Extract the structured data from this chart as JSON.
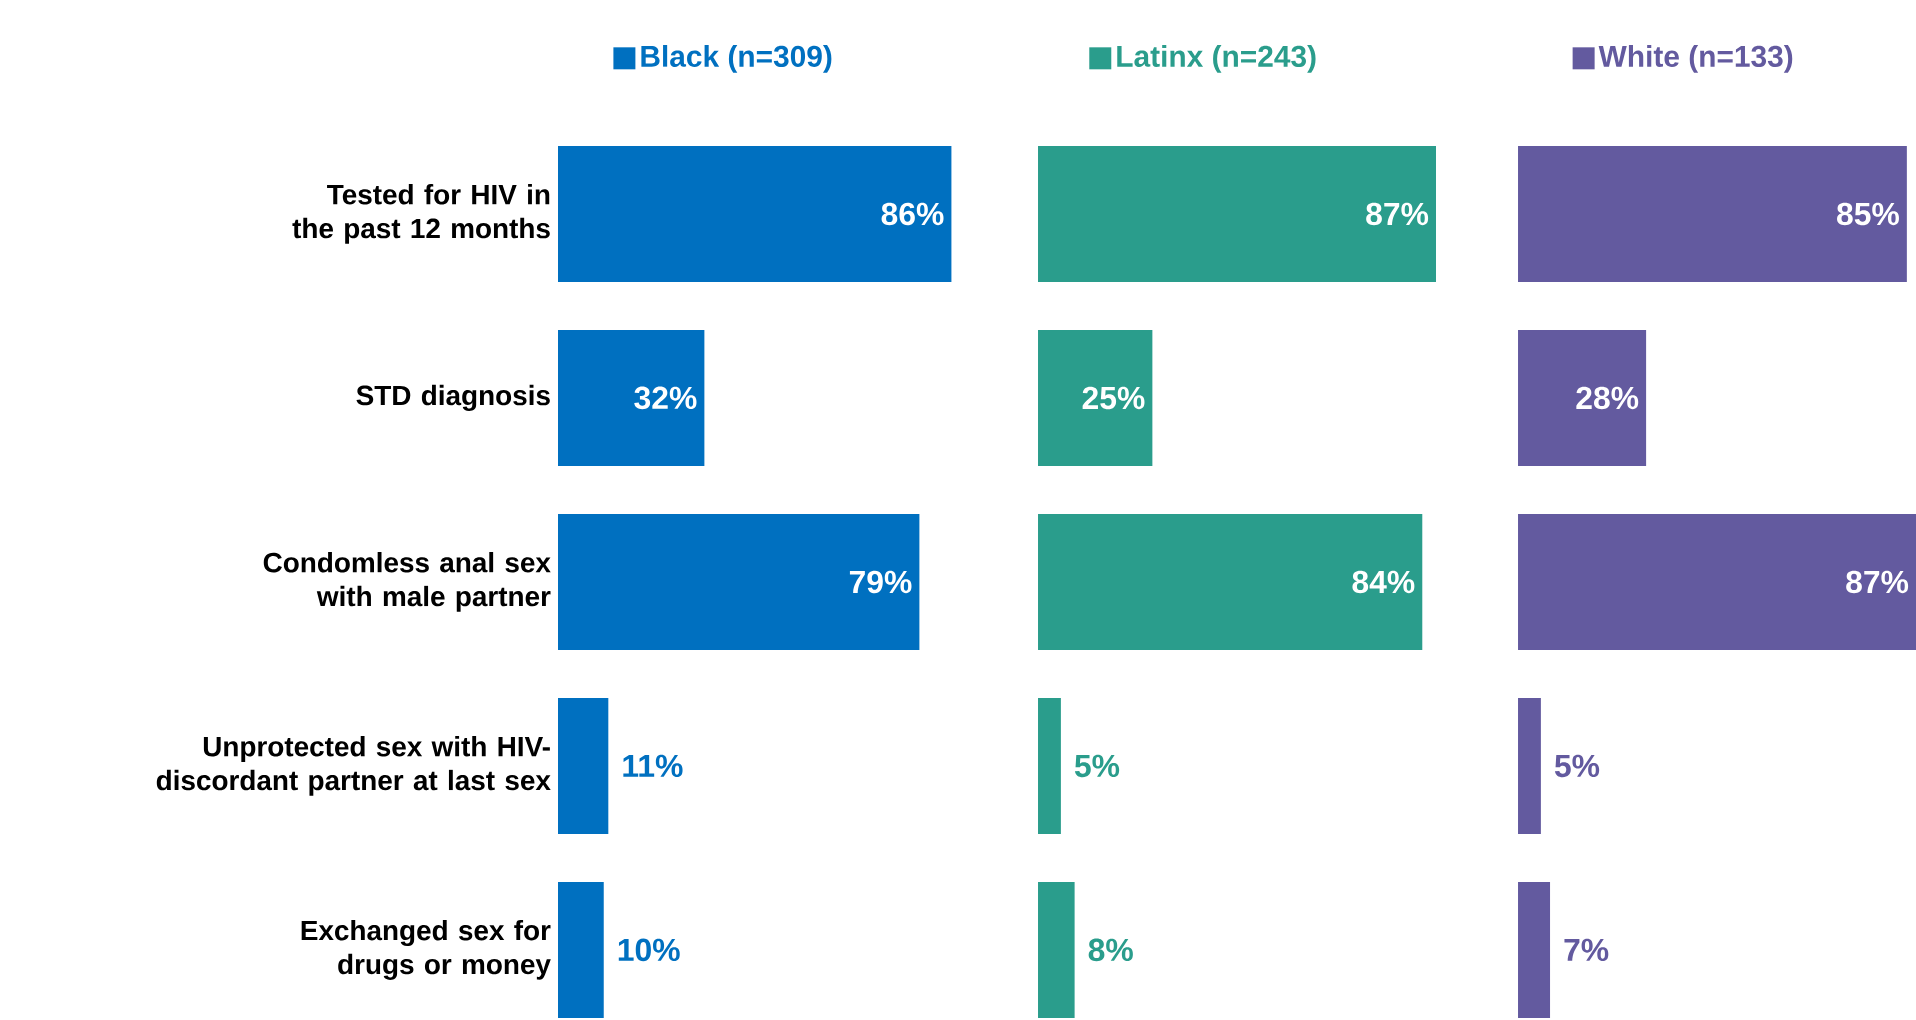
{
  "chart_data": [
    {
      "type": "bar",
      "orientation": "horizontal",
      "categories": [
        "Tested for HIV in the past 12 months",
        "STD diagnosis",
        "Condomless anal sex with male partner",
        "Unprotected sex with HIV-discordant partner at last sex",
        "Exchanged sex for drugs or money"
      ],
      "series": [
        {
          "name": "Black (n=309)",
          "color": "#0070c0",
          "values": [
            86,
            32,
            79,
            11,
            10
          ],
          "value_labels": [
            "86%",
            "32%",
            "79%",
            "11%",
            "10%"
          ]
        }
      ],
      "legend": "top",
      "tick_labels": "y"
    },
    {
      "type": "bar",
      "orientation": "horizontal",
      "categories": [
        null,
        null,
        null,
        null,
        null
      ],
      "series": [
        {
          "name": "Latinx (n=243)",
          "color": "#2a9d8c",
          "values": [
            87,
            25,
            84,
            5,
            8
          ],
          "value_labels": [
            "87%",
            "25%",
            "84%",
            "5%",
            "8%"
          ]
        }
      ],
      "legend": "top",
      "tick_labels": false
    },
    {
      "type": "bar",
      "orientation": "horizontal",
      "categories": [
        null,
        null,
        null,
        null,
        null
      ],
      "series": [
        {
          "name": "White (n=133)",
          "color": "#635a9f",
          "values": [
            85,
            28,
            87,
            5,
            7
          ],
          "value_labels": [
            "85%",
            "28%",
            "87%",
            "5%",
            "7%"
          ]
        }
      ],
      "legend": "top",
      "tick_labels": false
    }
  ]
}
